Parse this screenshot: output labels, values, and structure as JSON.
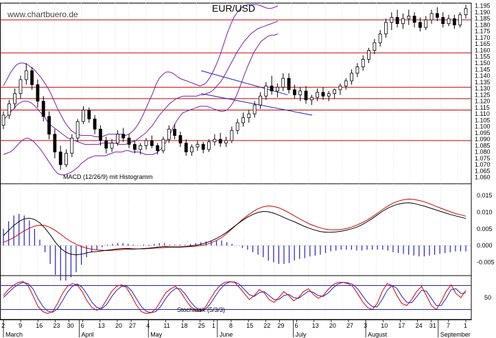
{
  "watermark": "www.chartbuero.de",
  "chart_data": {
    "type": "candlestick",
    "title": "EUR/USD",
    "price_axis": {
      "ylim": [
        1.055,
        1.1975
      ],
      "ticks": [
        "1.195",
        "1.190",
        "1.185",
        "1.180",
        "1.175",
        "1.170",
        "1.165",
        "1.160",
        "1.155",
        "1.150",
        "1.145",
        "1.140",
        "1.135",
        "1.130",
        "1.125",
        "1.120",
        "1.115",
        "1.110",
        "1.105",
        "1.100",
        "1.095",
        "1.090",
        "1.085",
        "1.080",
        "1.075",
        "1.070",
        "1.065",
        "1.060"
      ]
    },
    "horizontal_lines": [
      1.184,
      1.158,
      1.131,
      1.122,
      1.113,
      1.089
    ],
    "trend_channel": {
      "upper": [
        [
          105,
          1.144
        ],
        [
          151,
          1.125
        ]
      ],
      "lower": [
        [
          105,
          1.126
        ],
        [
          164,
          1.109
        ]
      ]
    },
    "candles": [
      [
        1.101,
        1.112,
        1.098,
        1.109
      ],
      [
        1.109,
        1.121,
        1.106,
        1.118
      ],
      [
        1.118,
        1.13,
        1.114,
        1.126
      ],
      [
        1.126,
        1.14,
        1.122,
        1.137
      ],
      [
        1.137,
        1.15,
        1.133,
        1.144
      ],
      [
        1.144,
        1.147,
        1.129,
        1.133
      ],
      [
        1.133,
        1.137,
        1.115,
        1.12
      ],
      [
        1.12,
        1.124,
        1.104,
        1.108
      ],
      [
        1.108,
        1.112,
        1.09,
        1.094
      ],
      [
        1.094,
        1.098,
        1.075,
        1.08
      ],
      [
        1.08,
        1.085,
        1.066,
        1.07
      ],
      [
        1.07,
        1.082,
        1.068,
        1.079
      ],
      [
        1.079,
        1.094,
        1.076,
        1.091
      ],
      [
        1.091,
        1.106,
        1.088,
        1.104
      ],
      [
        1.104,
        1.116,
        1.102,
        1.113
      ],
      [
        1.113,
        1.115,
        1.103,
        1.106
      ],
      [
        1.106,
        1.109,
        1.094,
        1.098
      ],
      [
        1.098,
        1.101,
        1.085,
        1.089
      ],
      [
        1.089,
        1.092,
        1.079,
        1.083
      ],
      [
        1.083,
        1.09,
        1.08,
        1.087
      ],
      [
        1.087,
        1.097,
        1.085,
        1.094
      ],
      [
        1.094,
        1.099,
        1.088,
        1.091
      ],
      [
        1.091,
        1.094,
        1.083,
        1.086
      ],
      [
        1.086,
        1.089,
        1.079,
        1.082
      ],
      [
        1.082,
        1.087,
        1.078,
        1.085
      ],
      [
        1.085,
        1.091,
        1.082,
        1.089
      ],
      [
        1.089,
        1.093,
        1.083,
        1.085
      ],
      [
        1.085,
        1.087,
        1.078,
        1.081
      ],
      [
        1.081,
        1.092,
        1.079,
        1.09
      ],
      [
        1.09,
        1.101,
        1.087,
        1.098
      ],
      [
        1.098,
        1.102,
        1.09,
        1.093
      ],
      [
        1.093,
        1.096,
        1.084,
        1.087
      ],
      [
        1.087,
        1.09,
        1.077,
        1.08
      ],
      [
        1.08,
        1.086,
        1.077,
        1.084
      ],
      [
        1.084,
        1.089,
        1.081,
        1.086
      ],
      [
        1.086,
        1.088,
        1.079,
        1.082
      ],
      [
        1.082,
        1.09,
        1.08,
        1.088
      ],
      [
        1.088,
        1.094,
        1.085,
        1.09
      ],
      [
        1.09,
        1.095,
        1.084,
        1.087
      ],
      [
        1.087,
        1.092,
        1.084,
        1.089
      ],
      [
        1.089,
        1.1,
        1.087,
        1.097
      ],
      [
        1.097,
        1.106,
        1.094,
        1.103
      ],
      [
        1.103,
        1.111,
        1.1,
        1.107
      ],
      [
        1.107,
        1.113,
        1.103,
        1.11
      ],
      [
        1.11,
        1.12,
        1.107,
        1.117
      ],
      [
        1.117,
        1.127,
        1.114,
        1.124
      ],
      [
        1.124,
        1.135,
        1.121,
        1.132
      ],
      [
        1.132,
        1.14,
        1.125,
        1.128
      ],
      [
        1.128,
        1.134,
        1.123,
        1.131
      ],
      [
        1.131,
        1.142,
        1.128,
        1.138
      ],
      [
        1.138,
        1.142,
        1.126,
        1.129
      ],
      [
        1.129,
        1.133,
        1.122,
        1.125
      ],
      [
        1.125,
        1.131,
        1.12,
        1.128
      ],
      [
        1.128,
        1.132,
        1.118,
        1.121
      ],
      [
        1.121,
        1.125,
        1.117,
        1.123
      ],
      [
        1.123,
        1.13,
        1.12,
        1.127
      ],
      [
        1.127,
        1.131,
        1.121,
        1.124
      ],
      [
        1.124,
        1.128,
        1.12,
        1.126
      ],
      [
        1.126,
        1.13,
        1.122,
        1.129
      ],
      [
        1.129,
        1.134,
        1.125,
        1.132
      ],
      [
        1.132,
        1.138,
        1.129,
        1.136
      ],
      [
        1.136,
        1.145,
        1.133,
        1.142
      ],
      [
        1.142,
        1.15,
        1.139,
        1.147
      ],
      [
        1.147,
        1.156,
        1.144,
        1.153
      ],
      [
        1.153,
        1.162,
        1.15,
        1.16
      ],
      [
        1.16,
        1.169,
        1.157,
        1.166
      ],
      [
        1.166,
        1.176,
        1.163,
        1.173
      ],
      [
        1.173,
        1.185,
        1.17,
        1.182
      ],
      [
        1.182,
        1.19,
        1.176,
        1.186
      ],
      [
        1.186,
        1.192,
        1.178,
        1.181
      ],
      [
        1.181,
        1.189,
        1.177,
        1.185
      ],
      [
        1.185,
        1.192,
        1.18,
        1.187
      ],
      [
        1.187,
        1.19,
        1.178,
        1.182
      ],
      [
        1.182,
        1.186,
        1.175,
        1.178
      ],
      [
        1.178,
        1.187,
        1.176,
        1.184
      ],
      [
        1.184,
        1.192,
        1.181,
        1.189
      ],
      [
        1.189,
        1.194,
        1.183,
        1.186
      ],
      [
        1.186,
        1.19,
        1.178,
        1.181
      ],
      [
        1.181,
        1.188,
        1.179,
        1.185
      ],
      [
        1.185,
        1.188,
        1.177,
        1.18
      ],
      [
        1.18,
        1.19,
        1.178,
        1.188
      ],
      [
        1.188,
        1.196,
        1.185,
        1.193
      ]
    ],
    "bollinger": {
      "upper": [
        1.132,
        1.137,
        1.142,
        1.146,
        1.149,
        1.15,
        1.15,
        1.149,
        1.147,
        1.145,
        1.142,
        1.139,
        1.135,
        1.131,
        1.126,
        1.12,
        1.114,
        1.109,
        1.104,
        1.1,
        1.097,
        1.095,
        1.094,
        1.093,
        1.093,
        1.093,
        1.093,
        1.092,
        1.092,
        1.092,
        1.093,
        1.094,
        1.094,
        1.094,
        1.094,
        1.094,
        1.093,
        1.094,
        1.096,
        1.099,
        1.103,
        1.108,
        1.114,
        1.12,
        1.126,
        1.133,
        1.138,
        1.141,
        1.143,
        1.143,
        1.142,
        1.14,
        1.138,
        1.137,
        1.136,
        1.135,
        1.134,
        1.133,
        1.132,
        1.133,
        1.135,
        1.139,
        1.144,
        1.15,
        1.157,
        1.165,
        1.173,
        1.18,
        1.186,
        1.19,
        1.193,
        1.195,
        1.196,
        1.196,
        1.196,
        1.196,
        1.195,
        1.194,
        1.193,
        1.193,
        1.194,
        1.195
      ],
      "middle": [
        1.105,
        1.108,
        1.111,
        1.114,
        1.117,
        1.119,
        1.12,
        1.12,
        1.119,
        1.117,
        1.114,
        1.111,
        1.108,
        1.104,
        1.101,
        1.099,
        1.097,
        1.095,
        1.093,
        1.091,
        1.09,
        1.089,
        1.088,
        1.087,
        1.086,
        1.086,
        1.086,
        1.086,
        1.086,
        1.087,
        1.087,
        1.087,
        1.087,
        1.087,
        1.086,
        1.086,
        1.086,
        1.087,
        1.088,
        1.089,
        1.091,
        1.093,
        1.095,
        1.098,
        1.101,
        1.105,
        1.109,
        1.112,
        1.115,
        1.118,
        1.12,
        1.122,
        1.123,
        1.124,
        1.124,
        1.124,
        1.124,
        1.124,
        1.125,
        1.125,
        1.126,
        1.127,
        1.129,
        1.132,
        1.135,
        1.139,
        1.144,
        1.149,
        1.154,
        1.159,
        1.163,
        1.167,
        1.17,
        1.173,
        1.175,
        1.177,
        1.178,
        1.179,
        1.18,
        1.181,
        1.182,
        1.183
      ],
      "lower": [
        1.078,
        1.079,
        1.08,
        1.082,
        1.085,
        1.088,
        1.09,
        1.091,
        1.09,
        1.088,
        1.085,
        1.082,
        1.078,
        1.074,
        1.07,
        1.066,
        1.063,
        1.062,
        1.062,
        1.063,
        1.064,
        1.066,
        1.068,
        1.071,
        1.073,
        1.075,
        1.076,
        1.077,
        1.077,
        1.077,
        1.077,
        1.078,
        1.079,
        1.08,
        1.08,
        1.08,
        1.081,
        1.081,
        1.08,
        1.08,
        1.08,
        1.079,
        1.078,
        1.078,
        1.078,
        1.079,
        1.081,
        1.084,
        1.088,
        1.093,
        1.099,
        1.104,
        1.108,
        1.111,
        1.112,
        1.113,
        1.114,
        1.115,
        1.116,
        1.116,
        1.116,
        1.115,
        1.114,
        1.113,
        1.112,
        1.112,
        1.113,
        1.116,
        1.12,
        1.126,
        1.133,
        1.14,
        1.147,
        1.153,
        1.159,
        1.163,
        1.167,
        1.169,
        1.171,
        1.172,
        1.172,
        1.173
      ]
    },
    "x_axis": {
      "day_ticks": [
        {
          "i": 0,
          "label": "2"
        },
        {
          "i": 5,
          "label": "9"
        },
        {
          "i": 10,
          "label": "16"
        },
        {
          "i": 15,
          "label": "23"
        },
        {
          "i": 19,
          "label": "30"
        },
        {
          "i": 23,
          "label": "6"
        },
        {
          "i": 28,
          "label": "13"
        },
        {
          "i": 33,
          "label": "20"
        },
        {
          "i": 37,
          "label": "27"
        },
        {
          "i": 42,
          "label": "4"
        },
        {
          "i": 47,
          "label": "11"
        },
        {
          "i": 52,
          "label": "18"
        },
        {
          "i": 57,
          "label": "25"
        },
        {
          "i": 61,
          "label": "1"
        },
        {
          "i": 66,
          "label": "8"
        },
        {
          "i": 71,
          "label": "15"
        },
        {
          "i": 76,
          "label": "22"
        },
        {
          "i": 80,
          "label": "29"
        },
        {
          "i": 85,
          "label": "6"
        },
        {
          "i": 90,
          "label": "13"
        },
        {
          "i": 95,
          "label": "20"
        },
        {
          "i": 100,
          "label": "27"
        },
        {
          "i": 105,
          "label": "3"
        },
        {
          "i": 110,
          "label": "10"
        },
        {
          "i": 115,
          "label": "17"
        },
        {
          "i": 120,
          "label": "24"
        },
        {
          "i": 124,
          "label": "31"
        },
        {
          "i": 129,
          "label": "7"
        },
        {
          "i": 134,
          "label": "1"
        }
      ],
      "months": [
        {
          "i": 0,
          "label": "March"
        },
        {
          "i": 22,
          "label": "April"
        },
        {
          "i": 42,
          "label": "May"
        },
        {
          "i": 62,
          "label": "June"
        },
        {
          "i": 84,
          "label": "July"
        },
        {
          "i": 105,
          "label": "August"
        },
        {
          "i": 126,
          "label": "September"
        }
      ]
    },
    "macd": {
      "label": "MACD (12/26/9) mit Histogramm",
      "ylim": [
        -0.009,
        0.0185
      ],
      "ticks": [
        "0.015",
        "0.010",
        "0.005",
        "0.000",
        "-0.005"
      ],
      "macd_line": [
        0.003,
        0.0045,
        0.006,
        0.0072,
        0.008,
        0.0082,
        0.0078,
        0.0068,
        0.0052,
        0.0032,
        0.001,
        -0.0008,
        -0.002,
        -0.0026,
        -0.0028,
        -0.0026,
        -0.0022,
        -0.0019,
        -0.0018,
        -0.0016,
        -0.0014,
        -0.0012,
        -0.001,
        -0.0009,
        -0.0009,
        -0.001,
        -0.001,
        -0.0009,
        -0.0008,
        -0.0006,
        -0.0004,
        -0.0003,
        -0.0004,
        -0.0004,
        -0.0004,
        -0.0003,
        -0.0001,
        0.0001,
        0.0004,
        0.0008,
        0.0014,
        0.0021,
        0.003,
        0.004,
        0.0052,
        0.0064,
        0.0075,
        0.0085,
        0.0093,
        0.0099,
        0.0102,
        0.0101,
        0.0097,
        0.0091,
        0.0084,
        0.0077,
        0.0071,
        0.0064,
        0.0057,
        0.0051,
        0.0046,
        0.0042,
        0.004,
        0.004,
        0.0041,
        0.0043,
        0.0046,
        0.005,
        0.0055,
        0.0062,
        0.0071,
        0.0081,
        0.0092,
        0.0103,
        0.0112,
        0.0119,
        0.0124,
        0.0127,
        0.0128,
        0.0126,
        0.0122,
        0.0118,
        0.0113,
        0.0108,
        0.0103,
        0.0098,
        0.0093,
        0.0089,
        0.0085,
        0.0081
      ],
      "signal_line": [
        0.001,
        0.0016,
        0.0024,
        0.0034,
        0.0044,
        0.0052,
        0.0058,
        0.0061,
        0.006,
        0.0054,
        0.0045,
        0.0034,
        0.0022,
        0.0012,
        0.0004,
        -0.0003,
        -0.0008,
        -0.0011,
        -0.0013,
        -0.0014,
        -0.0015,
        -0.0014,
        -0.0013,
        -0.0012,
        -0.0011,
        -0.0011,
        -0.001,
        -0.001,
        -0.0009,
        -0.0008,
        -0.0007,
        -0.0006,
        -0.0005,
        -0.0005,
        -0.0005,
        -0.0004,
        -0.0003,
        -0.0002,
        0.0,
        0.0003,
        0.0008,
        0.0015,
        0.0024,
        0.0036,
        0.005,
        0.0064,
        0.0078,
        0.009,
        0.0101,
        0.011,
        0.0116,
        0.0119,
        0.0117,
        0.0113,
        0.0106,
        0.0098,
        0.0089,
        0.008,
        0.0072,
        0.0064,
        0.0058,
        0.0053,
        0.0049,
        0.0047,
        0.0047,
        0.0048,
        0.0051,
        0.0055,
        0.0061,
        0.0068,
        0.0076,
        0.0086,
        0.0097,
        0.0108,
        0.0118,
        0.0127,
        0.0133,
        0.0137,
        0.0139,
        0.0138,
        0.0135,
        0.0131,
        0.0125,
        0.0119,
        0.0113,
        0.0107,
        0.0101,
        0.0096,
        0.0092,
        0.0088
      ]
    },
    "stochastic": {
      "label": "Stochastik (5/3/3)",
      "ylim": [
        -5,
        105
      ],
      "ticks": [
        "50"
      ],
      "reference_lines": [
        80,
        20
      ],
      "k_line": [
        55,
        70,
        80,
        88,
        90,
        80,
        55,
        28,
        15,
        10,
        15,
        35,
        60,
        78,
        85,
        82,
        65,
        42,
        25,
        18,
        25,
        45,
        65,
        78,
        82,
        75,
        55,
        32,
        15,
        10,
        12,
        22,
        42,
        62,
        72,
        78,
        65,
        45,
        28,
        18,
        15,
        25,
        45,
        65,
        80,
        88,
        90,
        88,
        75,
        60,
        45,
        55,
        70,
        62,
        45,
        38,
        50,
        65,
        55,
        42,
        50,
        65,
        72,
        58,
        48,
        55,
        70,
        82,
        88,
        88,
        85,
        78,
        60,
        40,
        25,
        20,
        35,
        65,
        85,
        80,
        55,
        35,
        30,
        45,
        65,
        78,
        55,
        30,
        20,
        40,
        65,
        82,
        60,
        50,
        68
      ],
      "d_line": [
        50,
        62,
        74,
        83,
        88,
        85,
        72,
        48,
        28,
        16,
        13,
        22,
        42,
        63,
        78,
        84,
        76,
        58,
        38,
        25,
        22,
        33,
        52,
        68,
        78,
        79,
        68,
        48,
        28,
        16,
        12,
        15,
        28,
        48,
        63,
        73,
        72,
        58,
        40,
        26,
        18,
        20,
        33,
        52,
        70,
        83,
        89,
        89,
        83,
        70,
        57,
        53,
        62,
        65,
        55,
        45,
        45,
        55,
        58,
        50,
        48,
        57,
        66,
        63,
        55,
        53,
        61,
        74,
        84,
        88,
        87,
        83,
        72,
        55,
        38,
        27,
        27,
        45,
        68,
        80,
        73,
        53,
        38,
        37,
        52,
        68,
        66,
        48,
        30,
        30,
        48,
        70,
        72,
        60,
        62
      ]
    }
  }
}
